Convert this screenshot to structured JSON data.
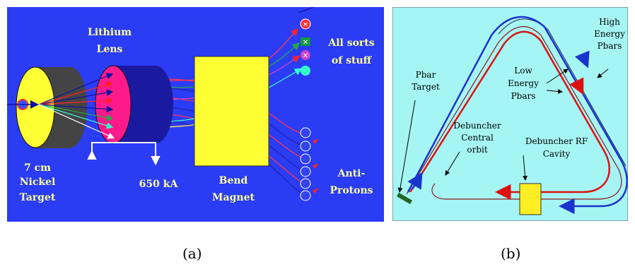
{
  "panel_a": {
    "label_lithium_1": "Lithium",
    "label_lithium_2": "Lens",
    "label_stuff_1": "All sorts",
    "label_stuff_2": "of stuff",
    "label_target_1": "7 cm",
    "label_target_2": "Nickel",
    "label_target_3": "Target",
    "label_current": "650 kA",
    "label_magnet_1": "Bend",
    "label_magnet_2": "Magnet",
    "label_antiprotons_1": "Anti-",
    "label_antiprotons_2": "Protons",
    "colors": {
      "background": "#2b3cf5",
      "target": "#ffff33",
      "lens": "#ff1a8c",
      "magnet": "#ffff33",
      "text": "#ffff99"
    }
  },
  "panel_b": {
    "label_high_1": "High",
    "label_high_2": "Energy",
    "label_high_3": "Pbars",
    "label_low_1": "Low",
    "label_low_2": "Energy",
    "label_low_3": "Pbars",
    "label_pbar_1": "Pbar",
    "label_pbar_2": "Target",
    "label_central_1": "Debuncher",
    "label_central_2": "Central",
    "label_central_3": "orbit",
    "label_rf_1": "Debuncher RF",
    "label_rf_2": "Cavity",
    "colors": {
      "background": "#a6f5f5",
      "high_energy": "#1a33cc",
      "low_energy": "#dd1111",
      "cavity": "#ffee22"
    }
  },
  "captions": {
    "a": "(a)",
    "b": "(b)"
  }
}
